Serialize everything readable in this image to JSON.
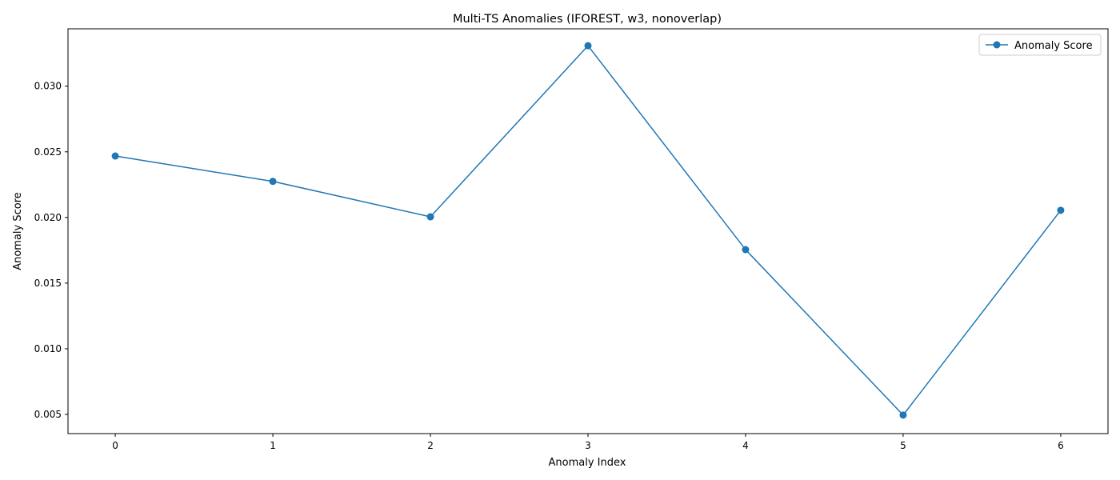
{
  "chart_data": {
    "type": "line",
    "title": "Multi-TS Anomalies (IFOREST, w3, nonoverlap)",
    "xlabel": "Anomaly Index",
    "ylabel": "Anomaly Score",
    "x": [
      0,
      1,
      2,
      3,
      4,
      5,
      6
    ],
    "series": [
      {
        "name": "Anomaly Score",
        "color": "#1f77b4",
        "marker": "circle",
        "values": [
          0.02468,
          0.02275,
          0.02005,
          0.03308,
          0.01755,
          0.00495,
          0.02055
        ]
      }
    ],
    "xlim": [
      -0.3,
      6.3
    ],
    "ylim": [
      0.00354,
      0.03437
    ],
    "xticks": [
      "0",
      "1",
      "2",
      "3",
      "4",
      "5",
      "6"
    ],
    "yticks": [
      "0.005",
      "0.010",
      "0.015",
      "0.020",
      "0.025",
      "0.030"
    ],
    "grid": false,
    "legend": "top-right"
  }
}
